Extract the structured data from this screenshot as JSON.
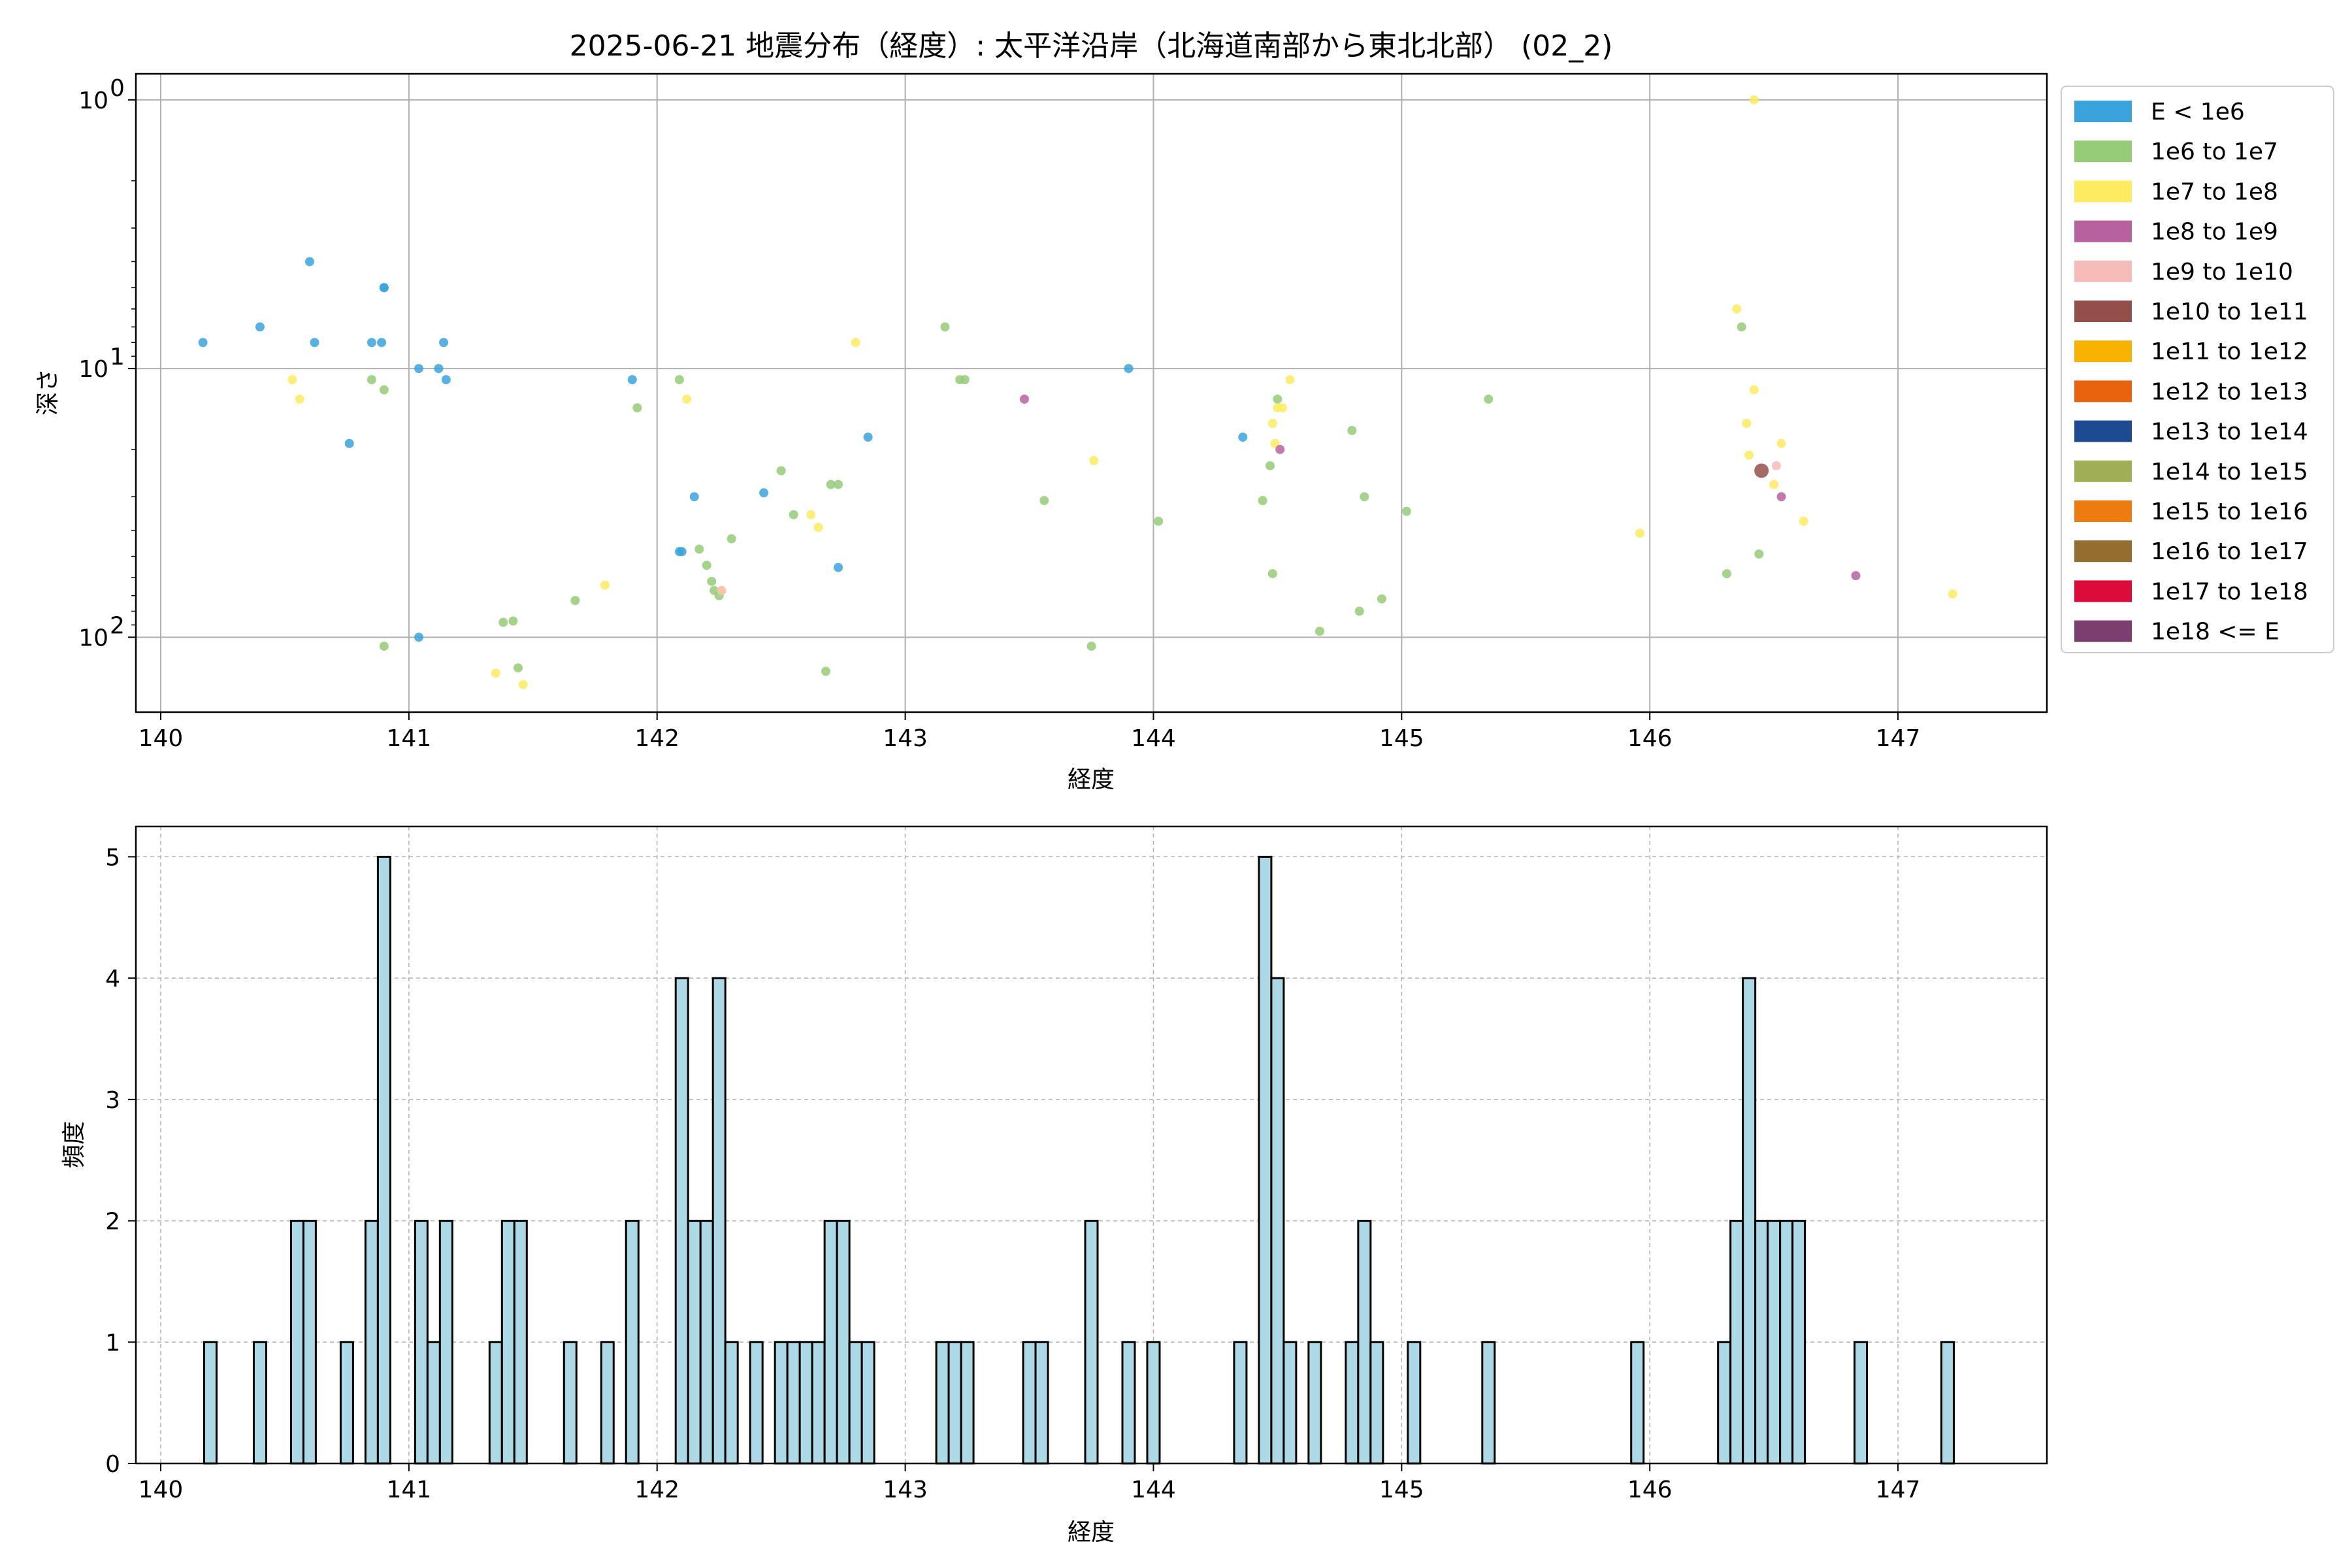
{
  "chart_data": [
    {
      "type": "scatter",
      "title": "2025-06-21 地震分布（経度）: 太平洋沿岸（北海道南部から東北北部） (02_2)",
      "xlabel": "経度",
      "ylabel": "深さ",
      "xlim": [
        139.9,
        147.6
      ],
      "ylim": [
        0.8,
        190
      ],
      "yscale": "log",
      "yaxis_inverted": true,
      "xticks": [
        140,
        141,
        142,
        143,
        144,
        145,
        146,
        147
      ],
      "xtick_labels": [
        "140",
        "141",
        "142",
        "143",
        "144",
        "145",
        "146",
        "147"
      ],
      "yticks": [
        1,
        10,
        100
      ],
      "ytick_labels": [
        "10",
        "10",
        "10"
      ],
      "ytick_exponents": [
        "0",
        "1",
        "2"
      ],
      "grid": true,
      "legend": {
        "placement": "outside-right",
        "entries": [
          {
            "label": "E < 1e6",
            "color": "#3ba3dc"
          },
          {
            "label": "1e6 to 1e7",
            "color": "#96cb78"
          },
          {
            "label": "1e7 to 1e8",
            "color": "#fdeb62"
          },
          {
            "label": "1e8 to 1e9",
            "color": "#b7629f"
          },
          {
            "label": "1e9 to 1e10",
            "color": "#f5bcb9"
          },
          {
            "label": "1e10 to 1e11",
            "color": "#93504b"
          },
          {
            "label": "1e11 to 1e12",
            "color": "#f8b200"
          },
          {
            "label": "1e12 to 1e13",
            "color": "#e9630e"
          },
          {
            "label": "1e13 to 1e14",
            "color": "#1d4a90"
          },
          {
            "label": "1e14 to 1e15",
            "color": "#a0ae55"
          },
          {
            "label": "1e15 to 1e16",
            "color": "#ee7b10"
          },
          {
            "label": "1e16 to 1e17",
            "color": "#946e2f"
          },
          {
            "label": "1e17 to 1e18",
            "color": "#dc0b3a"
          },
          {
            "label": "1e18 <= E",
            "color": "#7b3e6e"
          }
        ]
      },
      "series": [
        {
          "name": "E < 1e6",
          "points": [
            [
              140.17,
              8
            ],
            [
              140.4,
              7
            ],
            [
              140.6,
              4
            ],
            [
              140.62,
              8
            ],
            [
              140.85,
              8
            ],
            [
              140.89,
              8
            ],
            [
              140.9,
              5
            ],
            [
              140.9,
              5
            ],
            [
              141.04,
              10
            ],
            [
              141.12,
              10
            ],
            [
              141.14,
              8
            ],
            [
              141.15,
              11
            ],
            [
              140.76,
              19
            ],
            [
              141.04,
              100
            ],
            [
              141.9,
              11
            ],
            [
              142.1,
              48
            ],
            [
              142.09,
              48
            ],
            [
              142.15,
              30
            ],
            [
              142.43,
              29
            ],
            [
              142.73,
              55
            ],
            [
              142.85,
              18
            ],
            [
              143.9,
              10
            ],
            [
              144.36,
              18
            ]
          ]
        },
        {
          "name": "1e6 to 1e7",
          "points": [
            [
              140.85,
              11
            ],
            [
              140.9,
              12
            ],
            [
              140.9,
              108
            ],
            [
              141.92,
              14
            ],
            [
              142.09,
              11
            ],
            [
              141.38,
              88
            ],
            [
              141.42,
              87
            ],
            [
              141.44,
              130
            ],
            [
              141.67,
              73
            ],
            [
              142.17,
              47
            ],
            [
              142.2,
              54
            ],
            [
              142.22,
              62
            ],
            [
              142.23,
              67
            ],
            [
              142.25,
              70
            ],
            [
              142.3,
              43
            ],
            [
              142.5,
              24
            ],
            [
              142.55,
              35
            ],
            [
              142.7,
              27
            ],
            [
              142.73,
              27
            ],
            [
              142.68,
              134
            ],
            [
              143.16,
              7
            ],
            [
              143.22,
              11
            ],
            [
              143.24,
              11
            ],
            [
              143.56,
              31
            ],
            [
              143.75,
              108
            ],
            [
              144.02,
              37
            ],
            [
              144.44,
              31
            ],
            [
              144.47,
              23
            ],
            [
              144.48,
              58
            ],
            [
              144.5,
              13
            ],
            [
              144.67,
              95
            ],
            [
              144.8,
              17
            ],
            [
              144.83,
              80
            ],
            [
              144.85,
              30
            ],
            [
              144.92,
              72
            ],
            [
              145.02,
              34
            ],
            [
              145.35,
              13
            ],
            [
              146.31,
              58
            ],
            [
              146.37,
              7
            ],
            [
              146.44,
              49
            ]
          ]
        },
        {
          "name": "1e7 to 1e8",
          "points": [
            [
              140.53,
              11
            ],
            [
              140.56,
              13
            ],
            [
              142.12,
              13
            ],
            [
              141.35,
              136
            ],
            [
              141.46,
              150
            ],
            [
              141.79,
              64
            ],
            [
              142.26,
              67
            ],
            [
              142.62,
              35
            ],
            [
              142.65,
              39
            ],
            [
              142.8,
              8
            ],
            [
              143.76,
              22
            ],
            [
              144.48,
              16
            ],
            [
              144.49,
              19
            ],
            [
              144.5,
              14
            ],
            [
              144.52,
              14
            ],
            [
              144.55,
              11
            ],
            [
              145.96,
              41
            ],
            [
              146.35,
              6
            ],
            [
              146.39,
              16
            ],
            [
              146.4,
              21
            ],
            [
              146.42,
              12
            ],
            [
              146.5,
              27
            ],
            [
              146.53,
              19
            ],
            [
              146.62,
              37
            ],
            [
              147.22,
              69
            ],
            [
              146.42,
              1
            ]
          ]
        },
        {
          "name": "1e8 to 1e9",
          "points": [
            [
              143.48,
              13
            ],
            [
              144.51,
              20
            ],
            [
              146.53,
              30
            ],
            [
              146.83,
              59
            ]
          ]
        },
        {
          "name": "1e9 to 1e10",
          "points": [
            [
              142.26,
              67
            ],
            [
              146.51,
              23
            ]
          ]
        },
        {
          "name": "1e10 to 1e11",
          "points": [
            [
              146.45,
              24
            ]
          ]
        }
      ]
    },
    {
      "type": "bar",
      "title": "",
      "xlabel": "経度",
      "ylabel": "頻度",
      "xlim": [
        139.9,
        147.6
      ],
      "ylim": [
        0,
        5.25
      ],
      "xticks": [
        140,
        141,
        142,
        143,
        144,
        145,
        146,
        147
      ],
      "xtick_labels": [
        "140",
        "141",
        "142",
        "143",
        "144",
        "145",
        "146",
        "147"
      ],
      "yticks": [
        0,
        1,
        2,
        3,
        4,
        5
      ],
      "ytick_labels": [
        "0",
        "1",
        "2",
        "3",
        "4",
        "5"
      ],
      "grid": true,
      "bar_color": "#add8e6",
      "bin_width": 0.05,
      "bins": [
        [
          140.2,
          1
        ],
        [
          140.4,
          1
        ],
        [
          140.55,
          2
        ],
        [
          140.6,
          2
        ],
        [
          140.75,
          1
        ],
        [
          140.85,
          2
        ],
        [
          140.9,
          5
        ],
        [
          141.05,
          2
        ],
        [
          141.1,
          1
        ],
        [
          141.15,
          2
        ],
        [
          141.35,
          1
        ],
        [
          141.4,
          2
        ],
        [
          141.45,
          2
        ],
        [
          141.65,
          1
        ],
        [
          141.8,
          1
        ],
        [
          141.9,
          2
        ],
        [
          142.1,
          4
        ],
        [
          142.15,
          2
        ],
        [
          142.2,
          2
        ],
        [
          142.25,
          4
        ],
        [
          142.3,
          1
        ],
        [
          142.4,
          1
        ],
        [
          142.5,
          1
        ],
        [
          142.55,
          1
        ],
        [
          142.6,
          1
        ],
        [
          142.65,
          1
        ],
        [
          142.7,
          2
        ],
        [
          142.75,
          2
        ],
        [
          142.8,
          1
        ],
        [
          142.85,
          1
        ],
        [
          143.15,
          1
        ],
        [
          143.2,
          1
        ],
        [
          143.25,
          1
        ],
        [
          143.5,
          1
        ],
        [
          143.55,
          1
        ],
        [
          143.75,
          2
        ],
        [
          143.9,
          1
        ],
        [
          144.0,
          1
        ],
        [
          144.35,
          1
        ],
        [
          144.45,
          5
        ],
        [
          144.5,
          4
        ],
        [
          144.55,
          1
        ],
        [
          144.65,
          1
        ],
        [
          144.8,
          1
        ],
        [
          144.85,
          2
        ],
        [
          144.9,
          1
        ],
        [
          145.05,
          1
        ],
        [
          145.35,
          1
        ],
        [
          145.95,
          1
        ],
        [
          146.3,
          1
        ],
        [
          146.35,
          2
        ],
        [
          146.4,
          4
        ],
        [
          146.45,
          2
        ],
        [
          146.5,
          2
        ],
        [
          146.55,
          2
        ],
        [
          146.6,
          2
        ],
        [
          146.85,
          1
        ],
        [
          147.2,
          1
        ]
      ]
    }
  ]
}
